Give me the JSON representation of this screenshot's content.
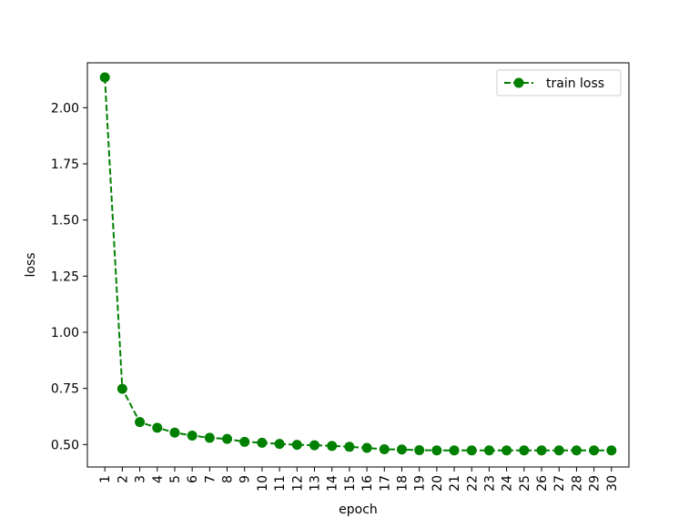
{
  "chart_data": {
    "type": "line",
    "title": "",
    "xlabel": "epoch",
    "ylabel": "loss",
    "x": [
      1,
      2,
      3,
      4,
      5,
      6,
      7,
      8,
      9,
      10,
      11,
      12,
      13,
      14,
      15,
      16,
      17,
      18,
      19,
      20,
      21,
      22,
      23,
      24,
      25,
      26,
      27,
      28,
      29,
      30
    ],
    "xlim": [
      0,
      31
    ],
    "ylim": [
      0.4,
      2.2
    ],
    "yticks": [
      0.5,
      0.75,
      1.0,
      1.25,
      1.5,
      1.75,
      2.0
    ],
    "ytick_labels": [
      "0.50",
      "0.75",
      "1.00",
      "1.25",
      "1.50",
      "1.75",
      "2.00"
    ],
    "xtick_labels": [
      "1",
      "2",
      "3",
      "4",
      "5",
      "6",
      "7",
      "8",
      "9",
      "10",
      "11",
      "12",
      "13",
      "14",
      "15",
      "16",
      "17",
      "18",
      "19",
      "20",
      "21",
      "22",
      "23",
      "24",
      "25",
      "26",
      "27",
      "28",
      "29",
      "30"
    ],
    "grid": false,
    "legend_position": "top-right",
    "series": [
      {
        "name": "train loss",
        "color": "#008000",
        "line_style": "dashed",
        "marker": "circle",
        "values": [
          2.135,
          0.748,
          0.6,
          0.575,
          0.553,
          0.54,
          0.53,
          0.525,
          0.512,
          0.508,
          0.503,
          0.499,
          0.497,
          0.494,
          0.49,
          0.485,
          0.479,
          0.478,
          0.475,
          0.474,
          0.474,
          0.474,
          0.474,
          0.474,
          0.474,
          0.474,
          0.474,
          0.474,
          0.474,
          0.474
        ]
      }
    ]
  }
}
